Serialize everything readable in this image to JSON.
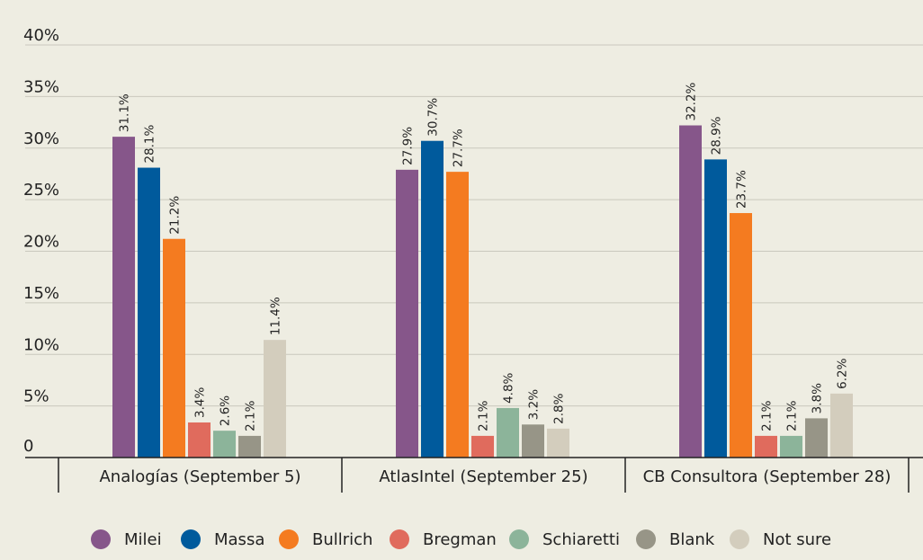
{
  "chart_data": {
    "type": "bar",
    "title": "",
    "xlabel": "",
    "ylabel": "",
    "ylim": [
      0,
      40
    ],
    "yticks": [
      {
        "value": 0,
        "label": "0"
      },
      {
        "value": 5,
        "label": "5%"
      },
      {
        "value": 10,
        "label": "10%"
      },
      {
        "value": 15,
        "label": "15%"
      },
      {
        "value": 20,
        "label": "20%"
      },
      {
        "value": 25,
        "label": "25%"
      },
      {
        "value": 30,
        "label": "30%"
      },
      {
        "value": 35,
        "label": "35%"
      },
      {
        "value": 40,
        "label": "40%"
      }
    ],
    "categories": [
      "Analogías (September 5)",
      "AtlasIntel (September 25)",
      "CB Consultora (September 28)"
    ],
    "series": [
      {
        "name": "Milei",
        "color": "#86568a",
        "values": [
          31.1,
          27.9,
          32.2
        ],
        "labels": [
          "31.1%",
          "27.9%",
          "32.2%"
        ]
      },
      {
        "name": "Massa",
        "color": "#005a9c",
        "values": [
          28.1,
          30.7,
          28.9
        ],
        "labels": [
          "28.1%",
          "30.7%",
          "28.9%"
        ]
      },
      {
        "name": "Bullrich",
        "color": "#f47b20",
        "values": [
          21.2,
          27.7,
          23.7
        ],
        "labels": [
          "21.2%",
          "27.7%",
          "23.7%"
        ]
      },
      {
        "name": "Bregman",
        "color": "#e06b5d",
        "values": [
          3.4,
          2.1,
          2.1
        ],
        "labels": [
          "3.4%",
          "2.1%",
          "2.1%"
        ]
      },
      {
        "name": "Schiaretti",
        "color": "#8cb49a",
        "values": [
          2.6,
          4.8,
          2.1
        ],
        "labels": [
          "2.6%",
          "4.8%",
          "2.1%"
        ]
      },
      {
        "name": "Blank",
        "color": "#979587",
        "values": [
          2.1,
          3.2,
          3.8
        ],
        "labels": [
          "2.1%",
          "3.2%",
          "3.8%"
        ]
      },
      {
        "name": "Not sure",
        "color": "#d3cdbd",
        "values": [
          11.4,
          2.8,
          6.2
        ],
        "labels": [
          "11.4%",
          "2.8%",
          "6.2%"
        ]
      }
    ],
    "legend": "bottom"
  }
}
